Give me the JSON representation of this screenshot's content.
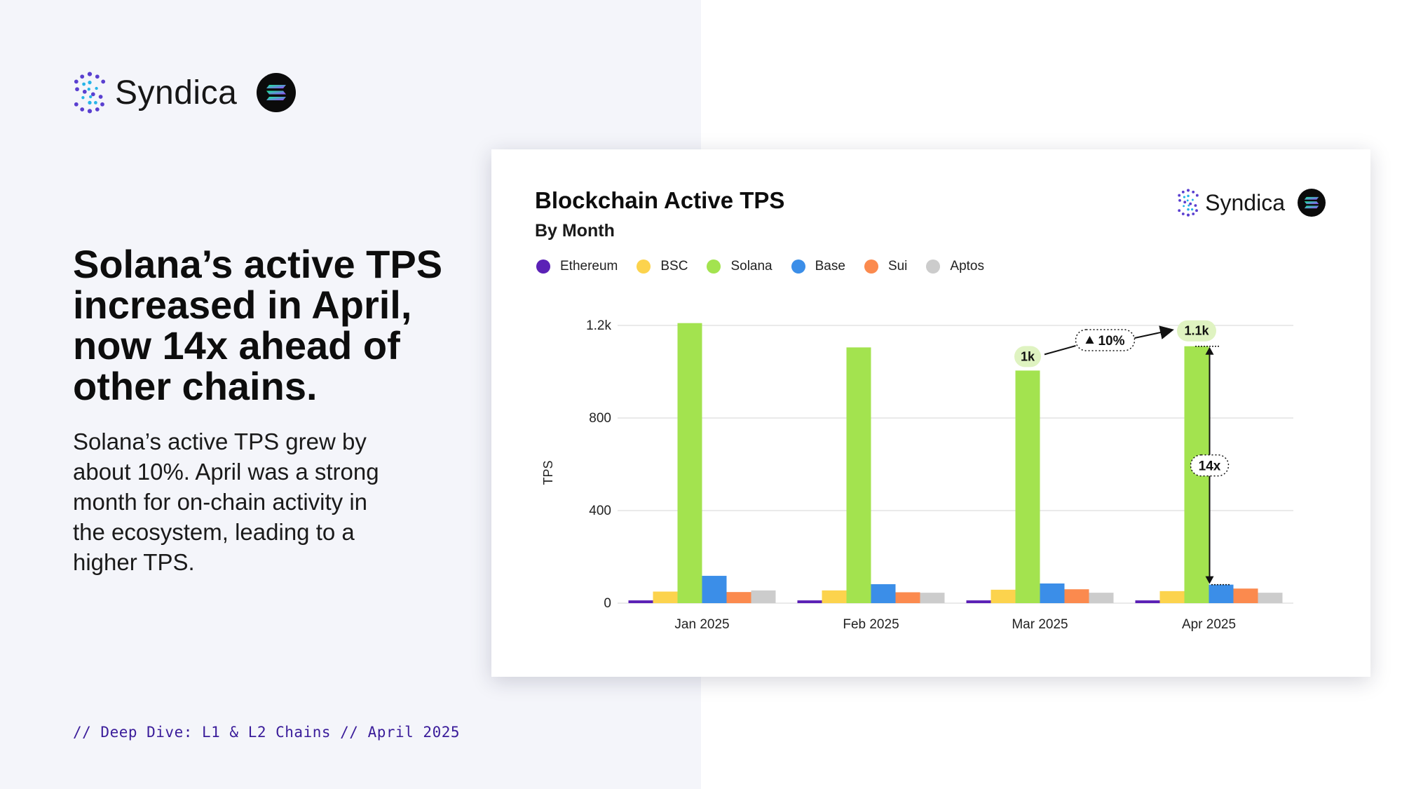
{
  "brand": {
    "name": "Syndica",
    "logo_icon": "syndica-logo-icon",
    "badge_icon": "solana-icon"
  },
  "headline": "Solana’s active TPS increased in April, now 14x ahead of other chains.",
  "body": "Solana’s active TPS grew by about 10%. April was a strong month for on-chain activity in the ecosystem, leading to a higher TPS.",
  "footer": "// Deep Dive: L1 & L2 Chains // April 2025",
  "colors": {
    "left_background": "#f4f5fa",
    "footer_text": "#3a1c9a",
    "annotation_pill": "#dff3c1"
  },
  "chart_data": {
    "type": "bar",
    "title": "Blockchain Active TPS",
    "subtitle": "By Month",
    "ylabel": "TPS",
    "xlabel": "",
    "ylim": [
      0,
      1200
    ],
    "yticks": [
      0,
      400,
      800,
      1200
    ],
    "ytick_labels": [
      "0",
      "400",
      "800",
      "1.2k"
    ],
    "grid": true,
    "legend_position": "top-left",
    "categories": [
      "Jan 2025",
      "Feb 2025",
      "Mar 2025",
      "Apr 2025"
    ],
    "series": [
      {
        "name": "Ethereum",
        "color": "#5b21b6",
        "values": [
          12,
          12,
          12,
          12
        ]
      },
      {
        "name": "BSC",
        "color": "#fcd34d",
        "values": [
          50,
          55,
          58,
          52
        ]
      },
      {
        "name": "Solana",
        "color": "#a3e34f",
        "values": [
          1210,
          1105,
          1005,
          1110
        ]
      },
      {
        "name": "Base",
        "color": "#3b8ee8",
        "values": [
          118,
          82,
          85,
          80
        ]
      },
      {
        "name": "Sui",
        "color": "#fb8a4e",
        "values": [
          48,
          47,
          60,
          63
        ]
      },
      {
        "name": "Aptos",
        "color": "#cccccc",
        "values": [
          55,
          45,
          45,
          45
        ]
      }
    ],
    "annotations": {
      "mar_label": "1k",
      "apr_label": "1.1k",
      "growth_label": "10%",
      "growth_icon": "triangle-up-icon",
      "multiple_label": "14x"
    }
  }
}
